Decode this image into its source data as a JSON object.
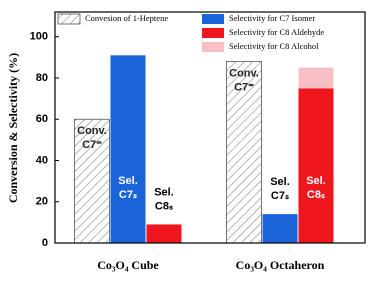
{
  "chart_data": {
    "type": "bar",
    "y_label": "Conversion & Selectivity (%)",
    "categories": [
      "Co₃O₄ Cube",
      "Co₃O₄ Octaheron"
    ],
    "ylim": [
      0,
      112
    ],
    "yticks": [
      0,
      20,
      40,
      60,
      80,
      100
    ],
    "series": [
      {
        "name": "Convesion of 1-Heptene",
        "color": "#ffffff",
        "hatch": true,
        "values": [
          60,
          88
        ],
        "bar_labels": [
          [
            "Conv.",
            "C7⁼"
          ],
          [
            "Conv.",
            "C7⁼"
          ]
        ]
      },
      {
        "name": "Selectivity for C7 Isomer",
        "color": "#1a63d8",
        "values": [
          91,
          14
        ],
        "bar_labels": [
          [
            "Sel.",
            "C7ₛ"
          ],
          [
            "Sel.",
            "C7ₛ"
          ]
        ]
      },
      {
        "name": "Selectivity for C8 Aldehyde",
        "color": "#f0161e",
        "values": [
          9,
          75
        ],
        "bar_labels": [
          [
            "Sel.",
            "C8ₛ"
          ],
          [
            "Sel.",
            "C8ₛ"
          ]
        ]
      },
      {
        "name": "Selectivity for C8 Alcohol",
        "color": "#f7bfc4",
        "stack": true,
        "values": [
          null,
          10
        ]
      }
    ]
  }
}
